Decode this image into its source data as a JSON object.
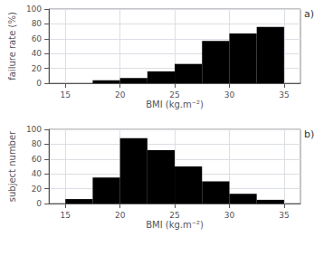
{
  "chart_data": [
    {
      "type": "bar",
      "bins": [
        15,
        17.5,
        20,
        22.5,
        25,
        27.5,
        30,
        32.5,
        35
      ],
      "values": [
        0,
        4,
        7,
        16,
        26,
        57,
        67,
        76
      ],
      "xlabel": "BMI (kg.m⁻²)",
      "ylabel": "failure rate (%)",
      "xlim": [
        13.5,
        36.5
      ],
      "xticks": [
        15,
        20,
        25,
        30,
        35
      ],
      "ylim": [
        0,
        100
      ],
      "yticks": [
        0,
        20,
        40,
        60,
        80,
        100
      ],
      "annotation": "a)",
      "color": "#000000",
      "grid": true
    },
    {
      "type": "bar",
      "bins": [
        15,
        17.5,
        20,
        22.5,
        25,
        27.5,
        30,
        32.5,
        35
      ],
      "values": [
        6,
        35,
        88,
        72,
        50,
        30,
        13,
        5
      ],
      "xlabel": "BMI (kg.m⁻²)",
      "ylabel": "subject number",
      "xlim": [
        13.5,
        36.5
      ],
      "xticks": [
        15,
        20,
        25,
        30,
        35
      ],
      "ylim": [
        0,
        100
      ],
      "yticks": [
        0,
        20,
        40,
        60,
        80,
        100
      ],
      "annotation": "b)",
      "color": "#000000",
      "grid": true
    }
  ]
}
